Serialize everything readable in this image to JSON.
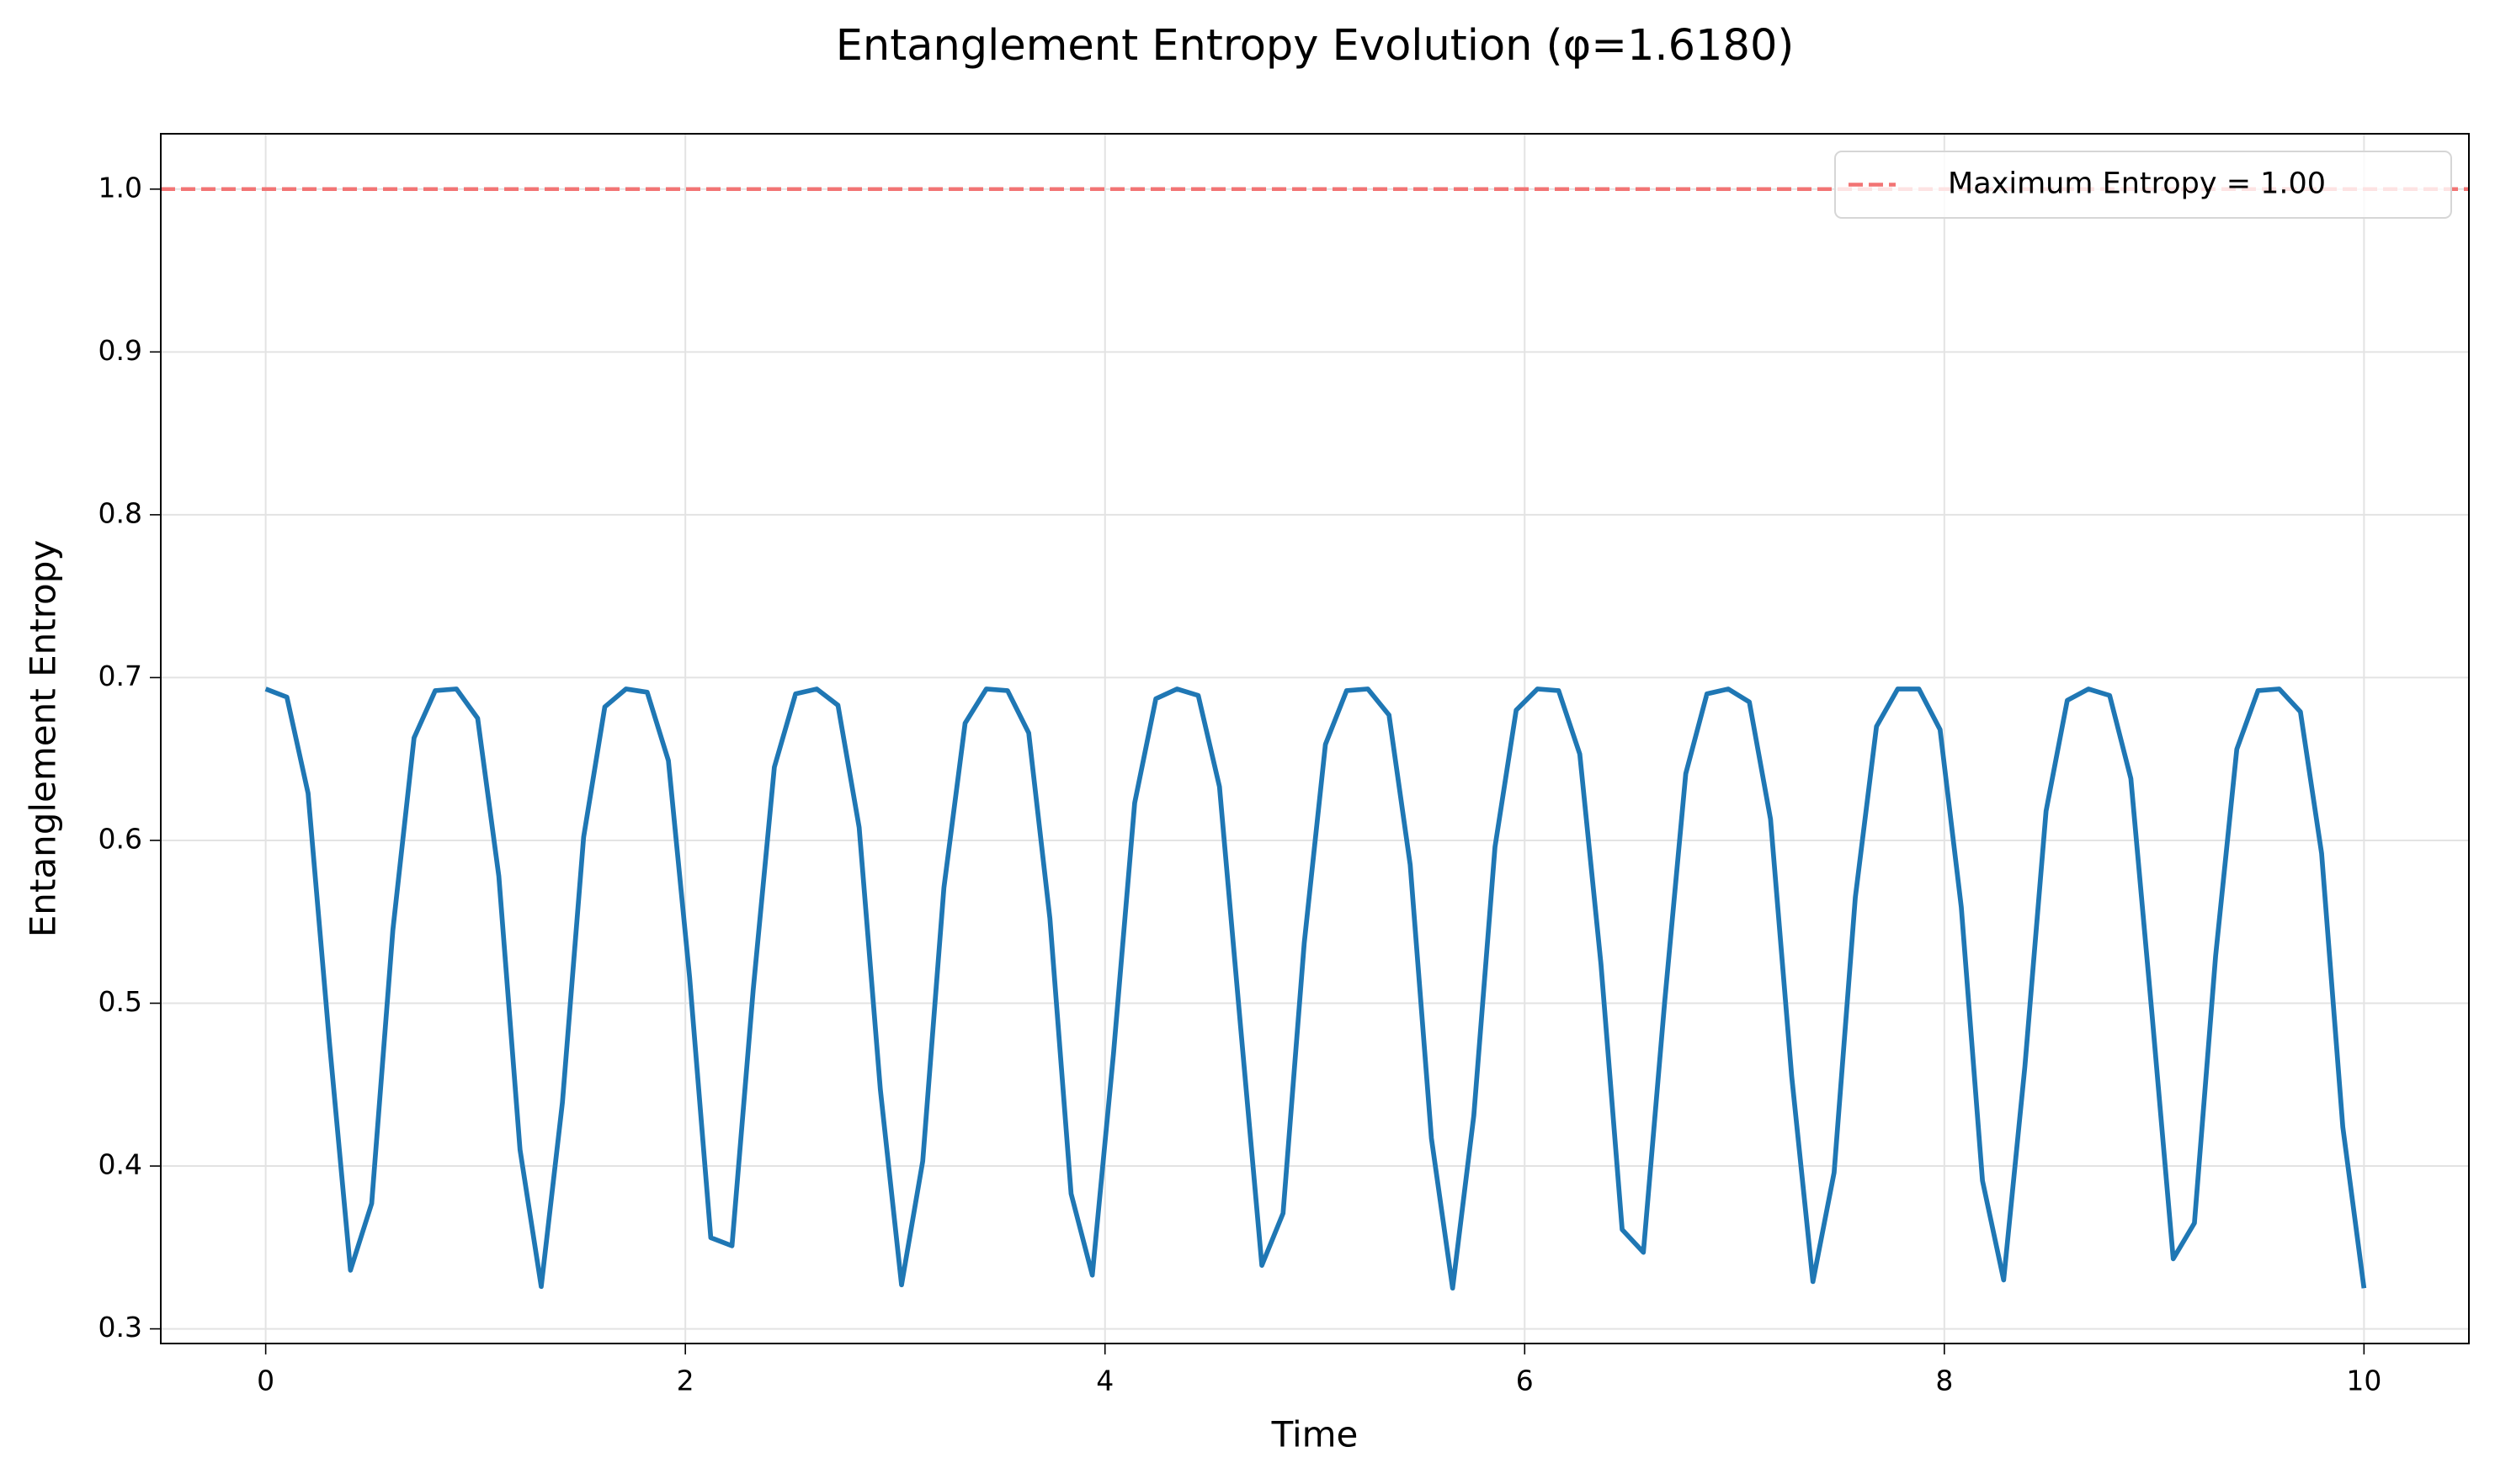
{
  "chart_data": {
    "type": "line",
    "title": "Entanglement Entropy Evolution (φ=1.6180)",
    "x_label": "Time",
    "y_label": "Entanglement Entropy",
    "x": [
      0,
      0.101,
      0.202,
      0.303,
      0.404,
      0.5051,
      0.6061,
      0.7071,
      0.8081,
      0.9091,
      1.0101,
      1.1111,
      1.2121,
      1.3131,
      1.4141,
      1.5152,
      1.6162,
      1.7172,
      1.8182,
      1.9192,
      2.0202,
      2.1212,
      2.2222,
      2.3232,
      2.4242,
      2.5253,
      2.6263,
      2.7273,
      2.8283,
      2.9293,
      3.0303,
      3.1313,
      3.2323,
      3.3333,
      3.4343,
      3.5354,
      3.6364,
      3.7374,
      3.8384,
      3.9394,
      4.0404,
      4.1414,
      4.2424,
      4.3434,
      4.4444,
      4.5455,
      4.6465,
      4.7475,
      4.8485,
      4.9495,
      5.0505,
      5.1515,
      5.2525,
      5.3535,
      5.4545,
      5.5556,
      5.6566,
      5.7576,
      5.8586,
      5.9596,
      6.0606,
      6.1616,
      6.2626,
      6.3636,
      6.4646,
      6.5657,
      6.6667,
      6.7677,
      6.8687,
      6.9697,
      7.0707,
      7.1717,
      7.2727,
      7.3737,
      7.4747,
      7.5758,
      7.6768,
      7.7778,
      7.8788,
      7.9798,
      8.0808,
      8.1818,
      8.2828,
      8.3838,
      8.4848,
      8.5859,
      8.6869,
      8.7879,
      8.8889,
      8.9899,
      9.0909,
      9.1919,
      9.2929,
      9.3939,
      9.4949,
      9.596,
      9.697,
      9.798,
      9.899,
      10
    ],
    "values": [
      0.693,
      0.688,
      0.629,
      0.477,
      0.336,
      0.377,
      0.545,
      0.663,
      0.692,
      0.693,
      0.675,
      0.578,
      0.41,
      0.326,
      0.439,
      0.602,
      0.682,
      0.693,
      0.691,
      0.649,
      0.516,
      0.356,
      0.351,
      0.508,
      0.645,
      0.69,
      0.693,
      0.683,
      0.608,
      0.447,
      0.327,
      0.403,
      0.571,
      0.672,
      0.693,
      0.692,
      0.666,
      0.552,
      0.383,
      0.333,
      0.469,
      0.623,
      0.687,
      0.693,
      0.689,
      0.633,
      0.485,
      0.339,
      0.371,
      0.537,
      0.659,
      0.692,
      0.693,
      0.677,
      0.585,
      0.417,
      0.325,
      0.431,
      0.596,
      0.68,
      0.693,
      0.692,
      0.653,
      0.524,
      0.361,
      0.347,
      0.5,
      0.641,
      0.69,
      0.693,
      0.685,
      0.613,
      0.455,
      0.329,
      0.396,
      0.565,
      0.67,
      0.693,
      0.693,
      0.668,
      0.559,
      0.391,
      0.33,
      0.461,
      0.618,
      0.686,
      0.693,
      0.689,
      0.638,
      0.493,
      0.343,
      0.365,
      0.529,
      0.656,
      0.692,
      0.693,
      0.679,
      0.592,
      0.424,
      0.325
    ],
    "color": "#1f77b4",
    "hline": {
      "value": 1,
      "label": "Maximum Entropy = 1.00",
      "color": "#f27474"
    },
    "xlim": [
      -0.5,
      10.5
    ],
    "xticks": [
      0,
      2,
      4,
      6,
      8,
      10
    ],
    "ylim": [
      0.291,
      1.034
    ],
    "yticks": [
      0.3,
      0.4,
      0.5,
      0.6,
      0.7,
      0.8,
      0.9,
      {
        "value": 1,
        "label": "1.0"
      }
    ],
    "grid": true,
    "legend": "upper right"
  }
}
